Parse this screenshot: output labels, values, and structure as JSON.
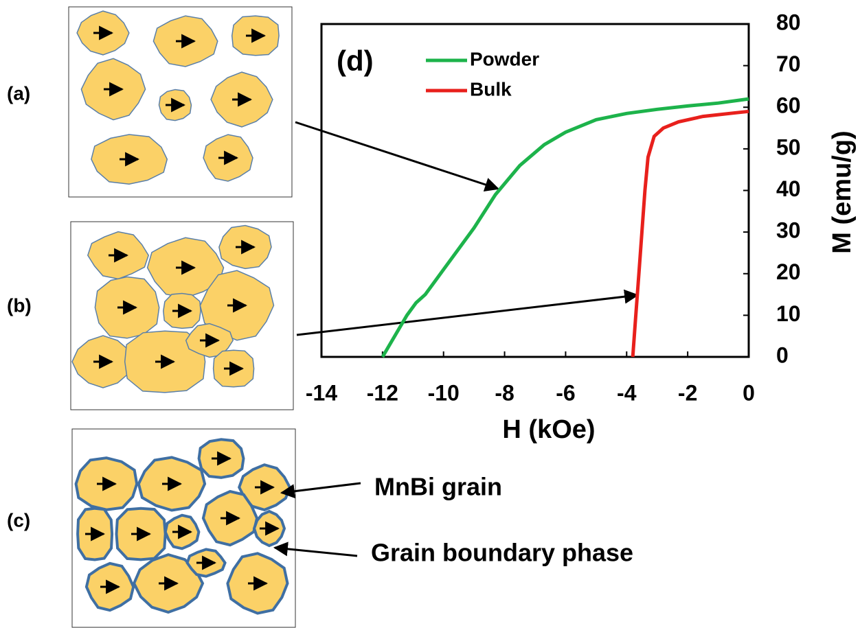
{
  "figure": {
    "panels": [
      "(a)",
      "(b)",
      "(c)"
    ],
    "annotations": [
      "MnBi grain",
      "Grain boundary phase"
    ]
  },
  "chart_data": {
    "type": "line",
    "panel_label": "(d)",
    "x_label": "H (kOe)",
    "y_label": "M (emu/g)",
    "xlim": [
      -14,
      0
    ],
    "xticks": [
      -14,
      -12,
      -10,
      -8,
      -6,
      -4,
      -2,
      0
    ],
    "ylim": [
      0,
      80
    ],
    "yticks": [
      0,
      10,
      20,
      30,
      40,
      50,
      60,
      70,
      80
    ],
    "legend": "upper-left",
    "series": [
      {
        "name": "Powder",
        "color": "#1db34b",
        "x": [
          -12,
          -11.6,
          -11.2,
          -10.9,
          -10.6,
          -10,
          -9,
          -8.3,
          -7.5,
          -6.7,
          -6,
          -5,
          -4,
          -3,
          -2,
          -1,
          0
        ],
        "values": [
          0,
          5,
          10,
          13,
          15,
          21,
          31,
          39,
          46,
          51,
          54,
          57,
          58.5,
          59.5,
          60.3,
          61,
          62
        ]
      },
      {
        "name": "Bulk",
        "color": "#e8201c",
        "x": [
          -3.8,
          -3.7,
          -3.6,
          -3.5,
          -3.4,
          -3.3,
          -3.1,
          -2.8,
          -2.3,
          -1.5,
          -0.5,
          0
        ],
        "values": [
          0,
          10,
          20,
          30,
          40,
          48,
          53,
          55,
          56.5,
          57.8,
          58.6,
          59
        ]
      }
    ]
  }
}
